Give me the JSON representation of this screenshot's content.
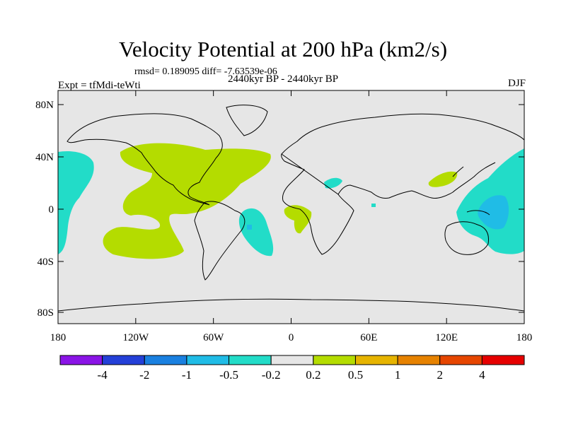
{
  "map": {
    "title": "Velocity Potential at 200 hPa (km2/s)",
    "stats": "rmsd= 0.189095 diff= -7.63539e-06",
    "experiment": "Expt = tfMdi-teWti",
    "period": "2440kyr BP - 2440kyr BP",
    "season": "DJF",
    "lat_ticks": [
      "80N",
      "40N",
      "0",
      "40S",
      "80S"
    ],
    "lon_ticks": [
      "180",
      "120W",
      "60W",
      "0",
      "60E",
      "120E",
      "180"
    ]
  },
  "colorbar": {
    "colors": [
      "#8a14e6",
      "#2440d8",
      "#1a80e0",
      "#20bce6",
      "#22dcc8",
      "#e6e6e6",
      "#b4dc00",
      "#e6b400",
      "#e68200",
      "#e64600",
      "#e60000"
    ],
    "labels": [
      "-4",
      "-2",
      "-1",
      "-0.5",
      "-0.2",
      "0.2",
      "0.5",
      "1",
      "2",
      "4"
    ]
  },
  "colors": {
    "background": "#e6e6e6",
    "positive": "#b4dc00",
    "negative": "#22dcc8",
    "strong_negative": "#20bce6"
  }
}
